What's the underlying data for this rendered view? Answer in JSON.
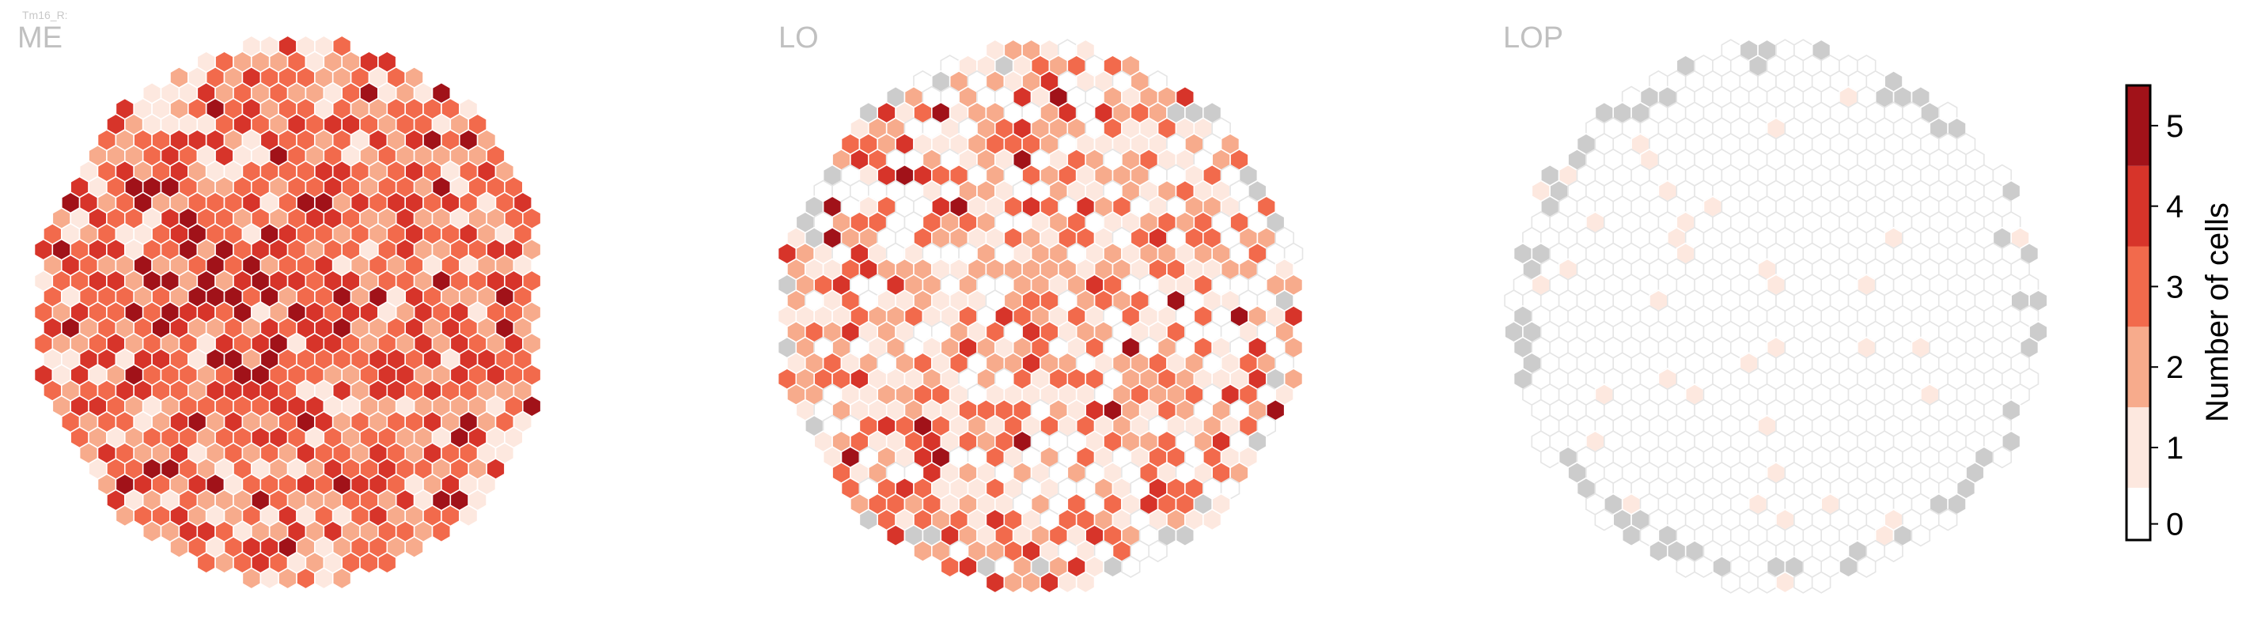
{
  "figure": {
    "corner_label": "Tm16_R:",
    "background": "#ffffff"
  },
  "chart_data": [
    {
      "type": "heatmap",
      "subtype": "hexagonal-grid",
      "title": "ME",
      "description_of_values": "Number of cells per column (0-5), mostly 2-4, highest (4-5) concentrated in center-left",
      "layout": "roughly circular hex lattice, flat-sided on the right",
      "value_distribution": {
        "0": 0.0,
        "1": 0.12,
        "2": 0.28,
        "3": 0.3,
        "4": 0.24,
        "5": 0.06
      },
      "grey_cells": "none"
    },
    {
      "type": "heatmap",
      "subtype": "hexagonal-grid",
      "title": "LO",
      "description_of_values": "Number of cells per column, mostly 1-3 with scattered 4-5; many 0 (white) near the top and right edges; grey cells along the perimeter",
      "value_distribution": {
        "0": 0.22,
        "1": 0.28,
        "2": 0.24,
        "3": 0.17,
        "4": 0.07,
        "5": 0.02
      },
      "grey_cells": "sparse along the edge"
    },
    {
      "type": "heatmap",
      "subtype": "hexagonal-grid",
      "title": "LOP",
      "description_of_values": "Nearly all columns 0 (white/light outline), a few scattered 1s, grey cells ring the perimeter",
      "value_distribution": {
        "0": 0.95,
        "1": 0.05
      },
      "grey_cells": "dense ring along the perimeter"
    }
  ],
  "colorbar": {
    "title": "Number of cells",
    "ticks": [
      "0",
      "1",
      "2",
      "3",
      "4",
      "5"
    ],
    "colors": [
      "#ffffff",
      "#fde8df",
      "#f7ab8c",
      "#f26a4c",
      "#d7342a",
      "#a11219"
    ],
    "grey_color": "#cccccc",
    "outline_color": "#e5e5e5"
  }
}
